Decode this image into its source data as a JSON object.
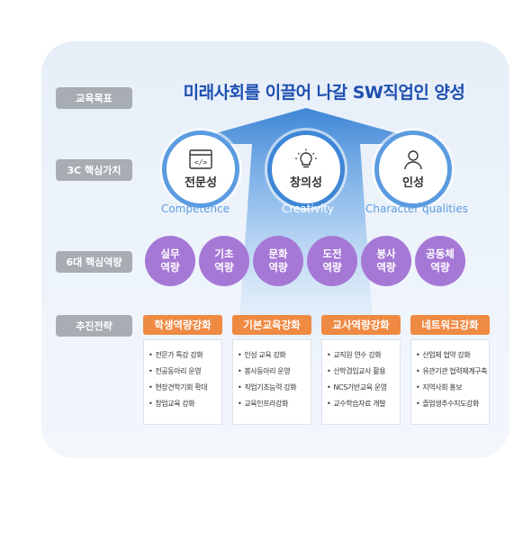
{
  "labels": {
    "goal": "교육목표",
    "core_values": "3C 핵심가치",
    "competencies": "6대 핵심역량",
    "strategy": "추진전략"
  },
  "goal_title": "미래사회를 이끌어 나갈 SW직업인 양성",
  "values": [
    {
      "kr": "전문성",
      "en": "Competence",
      "icon": "code-window-icon"
    },
    {
      "kr": "창의성",
      "en": "Creativity",
      "icon": "lightbulb-icon"
    },
    {
      "kr": "인성",
      "en": "Character qualities",
      "icon": "person-icon"
    }
  ],
  "competencies": [
    {
      "label": "실무\n역량"
    },
    {
      "label": "기초\n역량"
    },
    {
      "label": "문화\n역량"
    },
    {
      "label": "도전\n역량"
    },
    {
      "label": "봉사\n역량"
    },
    {
      "label": "공동체\n역량"
    }
  ],
  "strategies": [
    {
      "title": "학생역량강화",
      "items": [
        "전문가 특강 강화",
        "전공동아리 운영",
        "현장견학기회 확대",
        "창업교육 강화"
      ]
    },
    {
      "title": "기본교육강화",
      "items": [
        "인성 교육 강화",
        "봉사동아리 운영",
        "직업기초능력 강화",
        "교육인프라강화"
      ]
    },
    {
      "title": "교사역량강화",
      "items": [
        "교직원 연수 강화",
        "산학겸임교사 활용",
        "NCS기반교육 운영",
        "교수학습자료 개발"
      ]
    },
    {
      "title": "네트워크강화",
      "items": [
        "산업체 협약 강화",
        "유관기관 협력체계구축",
        "지역사회 홍보",
        "졸업생추수지도강화"
      ]
    }
  ],
  "colors": {
    "title": "#1d4fb0",
    "circle_border": "#5b9be0",
    "arrow": "#3e86d6",
    "competency": "#a678d6",
    "strategy": "#ef8a43",
    "label": "#a8acb3"
  }
}
